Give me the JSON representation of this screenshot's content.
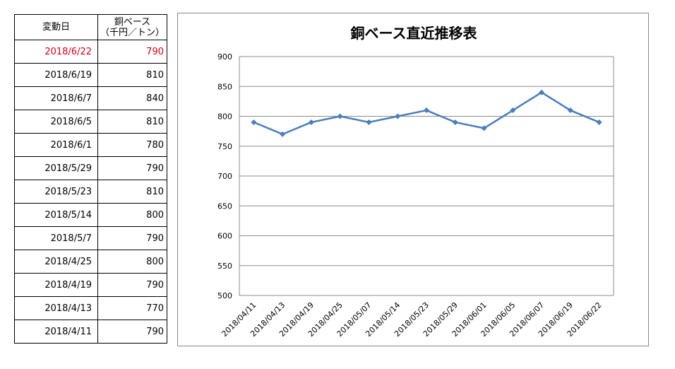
{
  "table": {
    "header": {
      "date": "変動日",
      "price_line1": "銅ベース",
      "price_line2": "（千円／トン）"
    },
    "highlight_color": "#d0021b",
    "rows": [
      {
        "date": "2018/6/22",
        "price": "790"
      },
      {
        "date": "2018/6/19",
        "price": "810"
      },
      {
        "date": "2018/6/7",
        "price": "840"
      },
      {
        "date": "2018/6/5",
        "price": "810"
      },
      {
        "date": "2018/6/1",
        "price": "780"
      },
      {
        "date": "2018/5/29",
        "price": "790"
      },
      {
        "date": "2018/5/23",
        "price": "810"
      },
      {
        "date": "2018/5/14",
        "price": "800"
      },
      {
        "date": "2018/5/7",
        "price": "790"
      },
      {
        "date": "2018/4/25",
        "price": "800"
      },
      {
        "date": "2018/4/19",
        "price": "790"
      },
      {
        "date": "2018/4/13",
        "price": "770"
      },
      {
        "date": "2018/4/11",
        "price": "790"
      }
    ]
  },
  "chart_data": {
    "type": "line",
    "title": "銅ベース直近推移表",
    "xlabel": "",
    "ylabel": "",
    "x": [
      "2018/04/11",
      "2018/04/13",
      "2018/04/19",
      "2018/04/25",
      "2018/05/07",
      "2018/05/14",
      "2018/05/23",
      "2018/05/29",
      "2018/06/01",
      "2018/06/05",
      "2018/06/07",
      "2018/06/19",
      "2018/06/22"
    ],
    "series": [
      {
        "values": [
          790,
          770,
          790,
          800,
          790,
          800,
          810,
          790,
          780,
          810,
          840,
          810,
          790
        ],
        "color": "#4a7ebb",
        "marker": "diamond"
      }
    ],
    "ylim": [
      500,
      900
    ],
    "yticks": [
      500,
      550,
      600,
      650,
      700,
      750,
      800,
      850,
      900
    ],
    "grid": true,
    "legend": "none"
  }
}
